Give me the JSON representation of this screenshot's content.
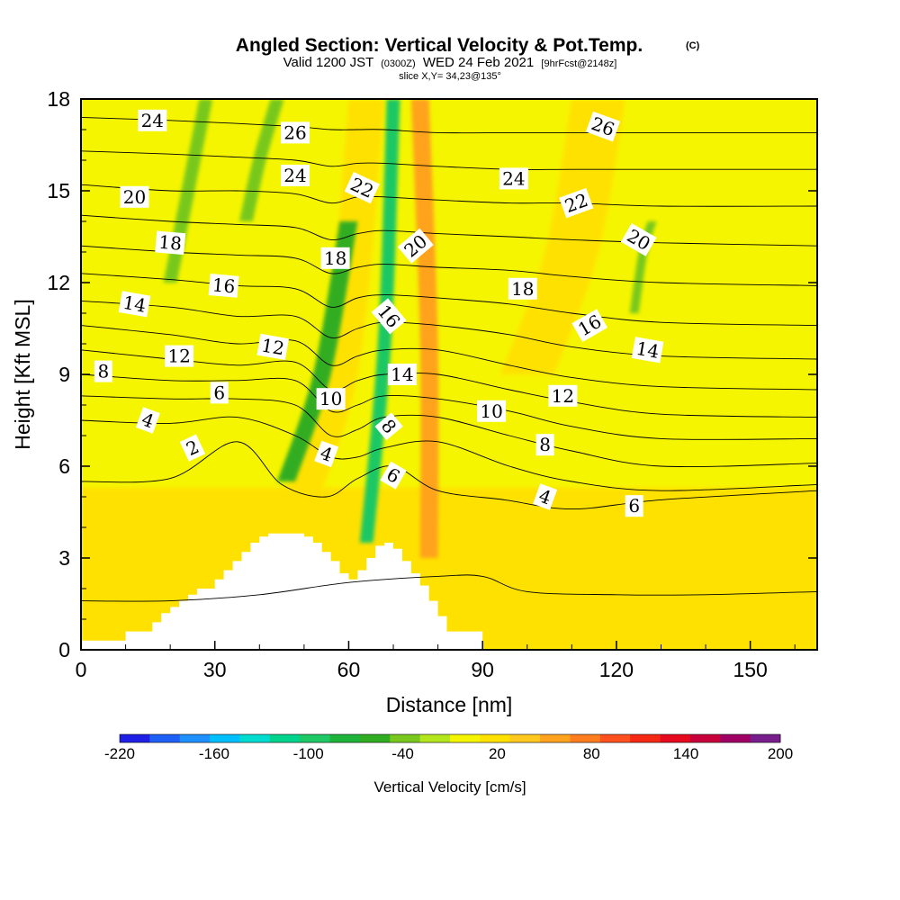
{
  "header": {
    "title": "Angled Section: Vertical Velocity & Pot.Temp.",
    "title_units": "(C)",
    "valid_prefix": "Valid 1200 JST",
    "valid_zulu": "(0300Z)",
    "valid_date": "WED 24 Feb 2021",
    "forecast_tag": "[9hrFcst@2148z]",
    "slice": "slice X,Y= 34,23@135°"
  },
  "chart_data": {
    "type": "heatmap",
    "xlabel": "Distance [nm]",
    "ylabel": "Height [Kft MSL]",
    "xlim": [
      0,
      165
    ],
    "ylim": [
      0,
      18
    ],
    "x_ticks": [
      "0",
      "30",
      "60",
      "90",
      "120",
      "150"
    ],
    "y_ticks": [
      "0",
      "3",
      "6",
      "9",
      "12",
      "15",
      "18"
    ],
    "grid": false,
    "fill_variable": "Vertical Velocity [cm/s]",
    "contour_variable": "Potential temperature (C)",
    "colorbar": {
      "label": "Vertical Velocity [cm/s]",
      "tick_labels": [
        "-220",
        "-160",
        "-100",
        "-40",
        "20",
        "80",
        "140",
        "200"
      ],
      "levels": [
        -220,
        -200,
        -180,
        -160,
        -140,
        -120,
        -100,
        -80,
        -60,
        -40,
        -20,
        0,
        20,
        40,
        60,
        80,
        100,
        120,
        140,
        160,
        180,
        200
      ],
      "colors": [
        "#1f1fe6",
        "#1e5ff5",
        "#1e90ff",
        "#00bfff",
        "#00ddd0",
        "#00d48c",
        "#1ec864",
        "#1eb43c",
        "#30ad22",
        "#78c81e",
        "#b4e61e",
        "#f5f500",
        "#ffe100",
        "#ffc81e",
        "#ffa21e",
        "#ff7d1e",
        "#ff501e",
        "#f52814",
        "#e60a1e",
        "#c8003c",
        "#a00064",
        "#781e8c"
      ]
    },
    "terrain_profile": {
      "x": [
        0,
        8,
        10,
        16,
        18,
        20,
        22,
        24,
        26,
        30,
        32,
        34,
        36,
        38,
        40,
        42,
        44,
        46,
        48,
        50,
        52,
        54,
        56,
        58,
        60,
        62,
        64,
        66,
        68,
        70,
        72,
        74,
        76,
        78,
        80,
        82,
        90
      ],
      "height": [
        0.3,
        0.3,
        0.6,
        0.9,
        1.2,
        1.4,
        1.6,
        1.8,
        2.0,
        2.3,
        2.6,
        2.9,
        3.2,
        3.5,
        3.7,
        3.8,
        3.8,
        3.8,
        3.8,
        3.7,
        3.5,
        3.2,
        2.9,
        2.5,
        2.3,
        2.6,
        3.0,
        3.4,
        3.5,
        3.3,
        2.9,
        2.5,
        2.1,
        1.6,
        1.1,
        0.6,
        0.3
      ]
    },
    "shading_regions": [
      {
        "kind": "background",
        "vv": 8
      },
      {
        "kind": "lower_band",
        "x_range": [
          0,
          165
        ],
        "top_kft": 5.3,
        "vv": 24
      },
      {
        "kind": "updraft",
        "path_x": [
          46,
          58,
          64
        ],
        "path_kft": [
          3.8,
          9,
          18
        ],
        "width_nm": 8,
        "vv": 36
      },
      {
        "kind": "updraft",
        "path_x": [
          78,
          78,
          76
        ],
        "path_kft": [
          3.0,
          10,
          18
        ],
        "width_nm": 4,
        "vv": 62
      },
      {
        "kind": "updraft",
        "path_x": [
          100,
          110,
          116
        ],
        "path_kft": [
          9,
          13,
          18
        ],
        "width_nm": 12,
        "vv": 28
      },
      {
        "kind": "downdraft",
        "path_x": [
          46,
          54,
          60
        ],
        "path_kft": [
          5.5,
          9,
          14
        ],
        "width_nm": 4,
        "vv": -55
      },
      {
        "kind": "downdraft",
        "path_x": [
          64,
          68,
          70
        ],
        "path_kft": [
          3.5,
          10,
          18
        ],
        "width_nm": 3,
        "vv": -90
      },
      {
        "kind": "downdraft",
        "path_x": [
          20,
          24,
          28
        ],
        "path_kft": [
          12,
          15,
          18
        ],
        "width_nm": 3,
        "vv": -35
      },
      {
        "kind": "downdraft",
        "path_x": [
          37,
          40,
          44
        ],
        "path_kft": [
          14,
          16,
          18
        ],
        "width_nm": 3,
        "vv": -35
      },
      {
        "kind": "downdraft",
        "path_x": [
          124,
          126,
          128
        ],
        "path_kft": [
          11,
          13,
          14
        ],
        "width_nm": 2,
        "vv": -35
      }
    ],
    "contour_lines": [
      {
        "theta": 0,
        "x": [
          0,
          20,
          40,
          60,
          80,
          90,
          100,
          120,
          140,
          165
        ],
        "height": [
          1.6,
          1.6,
          1.8,
          2.2,
          2.4,
          2.4,
          1.9,
          1.8,
          1.8,
          1.9
        ]
      },
      {
        "theta": 2,
        "x": [
          0,
          20,
          35,
          45,
          55,
          62,
          70,
          80,
          95,
          110,
          130,
          165
        ],
        "height": [
          5.5,
          5.6,
          6.8,
          5.4,
          5.0,
          5.6,
          6.0,
          5.2,
          4.9,
          4.6,
          4.9,
          5.2
        ]
      },
      {
        "theta": 4,
        "x": [
          0,
          20,
          35,
          48,
          56,
          62,
          68,
          80,
          96,
          110,
          130,
          165
        ],
        "height": [
          7.5,
          7.4,
          7.6,
          7.0,
          6.3,
          6.3,
          6.6,
          6.8,
          6.0,
          5.5,
          5.2,
          5.4
        ]
      },
      {
        "theta": 6,
        "x": [
          0,
          20,
          35,
          48,
          56,
          62,
          68,
          80,
          96,
          110,
          130,
          165
        ],
        "height": [
          8.3,
          8.2,
          8.2,
          8.0,
          7.0,
          7.2,
          7.6,
          7.6,
          7.0,
          6.5,
          6.0,
          6.1
        ]
      },
      {
        "theta": 8,
        "x": [
          0,
          20,
          35,
          48,
          56,
          62,
          68,
          80,
          96,
          110,
          130,
          165
        ],
        "height": [
          9.0,
          8.8,
          8.8,
          8.8,
          7.8,
          8.0,
          8.3,
          8.2,
          7.8,
          7.3,
          6.9,
          6.9
        ]
      },
      {
        "theta": 10,
        "x": [
          0,
          20,
          35,
          48,
          56,
          62,
          68,
          80,
          96,
          110,
          130,
          165
        ],
        "height": [
          9.8,
          9.5,
          9.3,
          9.4,
          8.5,
          8.8,
          9.0,
          9.0,
          8.5,
          8.1,
          7.7,
          7.6
        ]
      },
      {
        "theta": 12,
        "x": [
          0,
          20,
          35,
          48,
          56,
          62,
          68,
          80,
          96,
          110,
          130,
          165
        ],
        "height": [
          10.6,
          10.3,
          10.0,
          10.1,
          9.3,
          9.6,
          9.8,
          9.8,
          9.3,
          8.9,
          8.6,
          8.5
        ]
      },
      {
        "theta": 14,
        "x": [
          0,
          20,
          35,
          48,
          56,
          62,
          68,
          80,
          96,
          110,
          130,
          165
        ],
        "height": [
          11.4,
          11.2,
          10.9,
          10.9,
          10.2,
          10.5,
          10.7,
          10.6,
          10.3,
          9.9,
          9.6,
          9.5
        ]
      },
      {
        "theta": 16,
        "x": [
          0,
          20,
          35,
          48,
          56,
          62,
          68,
          80,
          96,
          110,
          130,
          165
        ],
        "height": [
          12.3,
          12.1,
          11.9,
          11.8,
          11.2,
          11.5,
          11.6,
          11.5,
          11.3,
          11.0,
          10.7,
          10.6
        ]
      },
      {
        "theta": 18,
        "x": [
          0,
          20,
          35,
          48,
          56,
          62,
          68,
          80,
          96,
          110,
          130,
          165
        ],
        "height": [
          13.2,
          13.0,
          12.9,
          12.8,
          12.3,
          12.5,
          12.6,
          12.5,
          12.4,
          12.2,
          12.0,
          11.9
        ]
      },
      {
        "theta": 20,
        "x": [
          0,
          20,
          35,
          48,
          56,
          62,
          68,
          80,
          96,
          110,
          130,
          165
        ],
        "height": [
          14.2,
          14.0,
          13.9,
          13.8,
          13.4,
          13.6,
          13.7,
          13.6,
          13.5,
          13.4,
          13.3,
          13.2
        ]
      },
      {
        "theta": 22,
        "x": [
          0,
          20,
          35,
          48,
          56,
          62,
          68,
          80,
          96,
          110,
          130,
          165
        ],
        "height": [
          15.2,
          15.0,
          15.0,
          14.9,
          14.6,
          14.8,
          14.8,
          14.7,
          14.6,
          14.6,
          14.5,
          14.5
        ]
      },
      {
        "theta": 24,
        "x": [
          0,
          20,
          35,
          48,
          56,
          62,
          68,
          80,
          96,
          110,
          130,
          165
        ],
        "height": [
          16.3,
          16.2,
          16.1,
          16.0,
          15.8,
          15.9,
          15.9,
          15.8,
          15.7,
          15.7,
          15.7,
          15.7
        ]
      },
      {
        "theta": 26,
        "x": [
          0,
          20,
          35,
          48,
          56,
          62,
          68,
          80,
          96,
          110,
          130,
          165
        ],
        "height": [
          17.4,
          17.3,
          17.2,
          17.1,
          17.0,
          17.0,
          17.0,
          16.9,
          16.9,
          16.9,
          16.9,
          16.9
        ]
      }
    ],
    "contour_labels": [
      {
        "text": "24",
        "x": 16,
        "y": 17.3,
        "rotate": 0
      },
      {
        "text": "26",
        "x": 48,
        "y": 16.9,
        "rotate": 0
      },
      {
        "text": "26",
        "x": 117,
        "y": 17.1,
        "rotate": 20
      },
      {
        "text": "24",
        "x": 48,
        "y": 15.5,
        "rotate": 0
      },
      {
        "text": "22",
        "x": 63,
        "y": 15.1,
        "rotate": 25
      },
      {
        "text": "24",
        "x": 97,
        "y": 15.4,
        "rotate": 0
      },
      {
        "text": "22",
        "x": 111,
        "y": 14.6,
        "rotate": -20
      },
      {
        "text": "20",
        "x": 12,
        "y": 14.8,
        "rotate": 0
      },
      {
        "text": "20",
        "x": 75,
        "y": 13.2,
        "rotate": -40
      },
      {
        "text": "20",
        "x": 125,
        "y": 13.4,
        "rotate": 30
      },
      {
        "text": "18",
        "x": 20,
        "y": 13.3,
        "rotate": 5
      },
      {
        "text": "18",
        "x": 57,
        "y": 12.8,
        "rotate": 0
      },
      {
        "text": "18",
        "x": 99,
        "y": 11.8,
        "rotate": 0
      },
      {
        "text": "16",
        "x": 32,
        "y": 11.9,
        "rotate": 5
      },
      {
        "text": "14",
        "x": 12,
        "y": 11.3,
        "rotate": 10
      },
      {
        "text": "16",
        "x": 69,
        "y": 10.9,
        "rotate": 50
      },
      {
        "text": "16",
        "x": 114,
        "y": 10.6,
        "rotate": -30
      },
      {
        "text": "14",
        "x": 127,
        "y": 9.8,
        "rotate": 10
      },
      {
        "text": "12",
        "x": 22,
        "y": 9.6,
        "rotate": 0
      },
      {
        "text": "12",
        "x": 43,
        "y": 9.9,
        "rotate": 10
      },
      {
        "text": "14",
        "x": 72,
        "y": 9.0,
        "rotate": 0
      },
      {
        "text": "8",
        "x": 5,
        "y": 9.1,
        "rotate": 0
      },
      {
        "text": "6",
        "x": 31,
        "y": 8.4,
        "rotate": 0
      },
      {
        "text": "10",
        "x": 56,
        "y": 8.2,
        "rotate": 0
      },
      {
        "text": "12",
        "x": 108,
        "y": 8.3,
        "rotate": 0
      },
      {
        "text": "10",
        "x": 92,
        "y": 7.8,
        "rotate": 0
      },
      {
        "text": "4",
        "x": 15,
        "y": 7.5,
        "rotate": 20
      },
      {
        "text": "8",
        "x": 69,
        "y": 7.3,
        "rotate": 50
      },
      {
        "text": "8",
        "x": 104,
        "y": 6.7,
        "rotate": 0
      },
      {
        "text": "2",
        "x": 25,
        "y": 6.6,
        "rotate": -25
      },
      {
        "text": "4",
        "x": 55,
        "y": 6.4,
        "rotate": 20
      },
      {
        "text": "6",
        "x": 70,
        "y": 5.7,
        "rotate": 30
      },
      {
        "text": "4",
        "x": 104,
        "y": 5.0,
        "rotate": 20
      },
      {
        "text": "6",
        "x": 124,
        "y": 4.7,
        "rotate": 0
      }
    ]
  }
}
